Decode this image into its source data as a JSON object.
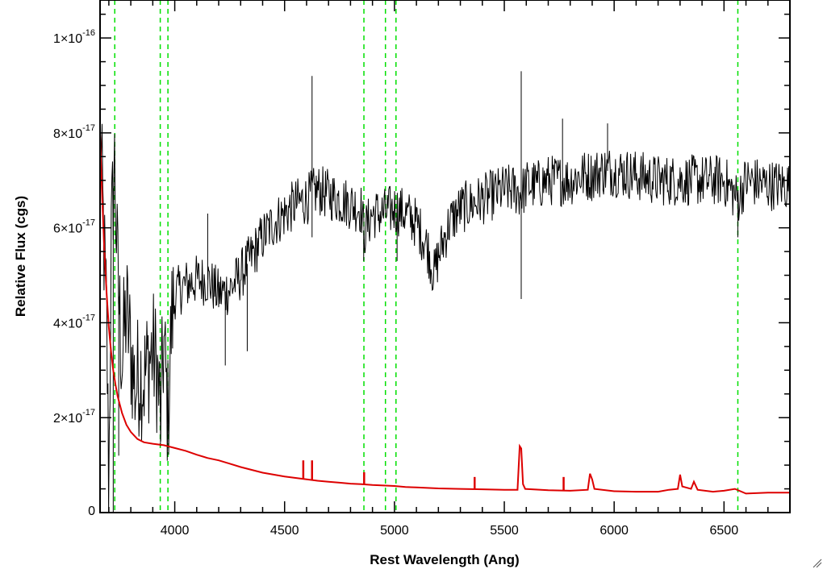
{
  "chart_data": {
    "type": "line",
    "title": "",
    "xlabel": "Rest Wavelength (Ang)",
    "ylabel": "Relative Flux (cgs)",
    "xlim": [
      3660,
      6800
    ],
    "ylim": [
      0,
      1.08e-16
    ],
    "x_ticks": [
      {
        "value": 4000,
        "label": "4000"
      },
      {
        "value": 4500,
        "label": "4500"
      },
      {
        "value": 5000,
        "label": "5000"
      },
      {
        "value": 5500,
        "label": "5500"
      },
      {
        "value": 6000,
        "label": "6000"
      },
      {
        "value": 6500,
        "label": "6500"
      }
    ],
    "y_ticks": [
      {
        "value": 0,
        "mantissa": "0",
        "exponent": ""
      },
      {
        "value": 2e-17,
        "mantissa": "2×10",
        "exponent": "-17"
      },
      {
        "value": 4e-17,
        "mantissa": "4×10",
        "exponent": "-17"
      },
      {
        "value": 6e-17,
        "mantissa": "6×10",
        "exponent": "-17"
      },
      {
        "value": 8e-17,
        "mantissa": "8×10",
        "exponent": "-17"
      },
      {
        "value": 1e-16,
        "mantissa": "1×10",
        "exponent": "-16"
      }
    ],
    "reference_lines": {
      "color": "#00e000",
      "style": "dashed",
      "x": [
        3727,
        3934,
        3969,
        4861,
        4959,
        5007,
        6563
      ]
    },
    "series": [
      {
        "color": "#000000",
        "noisy": true,
        "points": [
          [
            3660,
            8e-17
          ],
          [
            3675,
            6e-17
          ],
          [
            3690,
            4e-17
          ],
          [
            3700,
            5e-18
          ],
          [
            3710,
            5.5e-17
          ],
          [
            3725,
            7.5e-17
          ],
          [
            3740,
            5e-17
          ],
          [
            3760,
            3.2e-17
          ],
          [
            3780,
            4.3e-17
          ],
          [
            3800,
            3.4e-17
          ],
          [
            3820,
            2.6e-17
          ],
          [
            3840,
            3e-17
          ],
          [
            3860,
            2.8e-17
          ],
          [
            3880,
            3.2e-17
          ],
          [
            3900,
            3.4e-17
          ],
          [
            3920,
            3e-17
          ],
          [
            3935,
            2e-17
          ],
          [
            3950,
            3.6e-17
          ],
          [
            3969,
            2e-17
          ],
          [
            3985,
            4e-17
          ],
          [
            4000,
            4.6e-17
          ],
          [
            4050,
            4.8e-17
          ],
          [
            4100,
            4.9e-17
          ],
          [
            4150,
            4.9e-17
          ],
          [
            4200,
            4.6e-17
          ],
          [
            4250,
            4.7e-17
          ],
          [
            4300,
            5e-17
          ],
          [
            4350,
            5.4e-17
          ],
          [
            4400,
            5.8e-17
          ],
          [
            4450,
            6.1e-17
          ],
          [
            4500,
            6.3e-17
          ],
          [
            4550,
            6.5e-17
          ],
          [
            4600,
            6.6e-17
          ],
          [
            4650,
            6.8e-17
          ],
          [
            4700,
            6.7e-17
          ],
          [
            4750,
            6.6e-17
          ],
          [
            4800,
            6.5e-17
          ],
          [
            4850,
            6.4e-17
          ],
          [
            4861,
            5.9e-17
          ],
          [
            4900,
            6.3e-17
          ],
          [
            4950,
            6.3e-17
          ],
          [
            5000,
            6.4e-17
          ],
          [
            5050,
            6.3e-17
          ],
          [
            5100,
            6.1e-17
          ],
          [
            5150,
            5.6e-17
          ],
          [
            5180,
            5e-17
          ],
          [
            5200,
            5.4e-17
          ],
          [
            5250,
            6.1e-17
          ],
          [
            5300,
            6.4e-17
          ],
          [
            5350,
            6.5e-17
          ],
          [
            5400,
            6.6e-17
          ],
          [
            5450,
            6.7e-17
          ],
          [
            5500,
            6.8e-17
          ],
          [
            5550,
            6.8e-17
          ],
          [
            5577,
            6.7e-17
          ],
          [
            5600,
            6.9e-17
          ],
          [
            5650,
            6.9e-17
          ],
          [
            5700,
            7e-17
          ],
          [
            5750,
            7e-17
          ],
          [
            5800,
            7e-17
          ],
          [
            5850,
            7.1e-17
          ],
          [
            5900,
            7.1e-17
          ],
          [
            5950,
            7.2e-17
          ],
          [
            6000,
            7.2e-17
          ],
          [
            6100,
            7.1e-17
          ],
          [
            6200,
            7e-17
          ],
          [
            6300,
            7e-17
          ],
          [
            6400,
            7e-17
          ],
          [
            6500,
            7e-17
          ],
          [
            6563,
            6.6e-17
          ],
          [
            6600,
            7e-17
          ],
          [
            6700,
            6.9e-17
          ],
          [
            6800,
            6.9e-17
          ]
        ],
        "spikes": [
          [
            4625,
            9.2e-17
          ],
          [
            4625,
            5.8e-17
          ],
          [
            5577,
            9.3e-17
          ],
          [
            5577,
            4.5e-17
          ],
          [
            5765,
            8.3e-17
          ],
          [
            5970,
            8.2e-17
          ],
          [
            6563,
            5.8e-17
          ],
          [
            4860,
            5.3e-17
          ],
          [
            5012,
            5.3e-17
          ],
          [
            4230,
            3.1e-17
          ],
          [
            4330,
            3.4e-17
          ],
          [
            3935,
            1.4e-17
          ],
          [
            3720,
            0.0
          ],
          [
            3745,
            1.2e-17
          ],
          [
            4150,
            6.3e-17
          ]
        ]
      },
      {
        "color": "#dd0000",
        "noisy": false,
        "points": [
          [
            3660,
            8e-17
          ],
          [
            3670,
            6.6e-17
          ],
          [
            3680,
            5.5e-17
          ],
          [
            3690,
            4.6e-17
          ],
          [
            3700,
            3.9e-17
          ],
          [
            3710,
            3.4e-17
          ],
          [
            3720,
            3e-17
          ],
          [
            3730,
            2.7e-17
          ],
          [
            3740,
            2.45e-17
          ],
          [
            3760,
            2.1e-17
          ],
          [
            3780,
            1.85e-17
          ],
          [
            3800,
            1.7e-17
          ],
          [
            3830,
            1.55e-17
          ],
          [
            3860,
            1.48e-17
          ],
          [
            3900,
            1.45e-17
          ],
          [
            3950,
            1.42e-17
          ],
          [
            4000,
            1.36e-17
          ],
          [
            4050,
            1.3e-17
          ],
          [
            4100,
            1.22e-17
          ],
          [
            4150,
            1.15e-17
          ],
          [
            4200,
            1.1e-17
          ],
          [
            4250,
            1.03e-17
          ],
          [
            4300,
            9.6e-18
          ],
          [
            4350,
            9e-18
          ],
          [
            4400,
            8.4e-18
          ],
          [
            4450,
            8e-18
          ],
          [
            4500,
            7.6e-18
          ],
          [
            4550,
            7.3e-18
          ],
          [
            4600,
            7e-18
          ],
          [
            4650,
            6.7e-18
          ],
          [
            4700,
            6.5e-18
          ],
          [
            4750,
            6.3e-18
          ],
          [
            4800,
            6.1e-18
          ],
          [
            4850,
            6e-18
          ],
          [
            4900,
            5.8e-18
          ],
          [
            4950,
            5.7e-18
          ],
          [
            5000,
            5.6e-18
          ],
          [
            5050,
            5.4e-18
          ],
          [
            5100,
            5.3e-18
          ],
          [
            5150,
            5.2e-18
          ],
          [
            5200,
            5.1e-18
          ],
          [
            5300,
            5e-18
          ],
          [
            5400,
            4.9e-18
          ],
          [
            5500,
            4.8e-18
          ],
          [
            5560,
            4.8e-18
          ],
          [
            5570,
            1.4e-17
          ],
          [
            5577,
            1.35e-17
          ],
          [
            5585,
            6e-18
          ],
          [
            5595,
            5e-18
          ],
          [
            5700,
            4.7e-18
          ],
          [
            5800,
            4.6e-18
          ],
          [
            5880,
            4.8e-18
          ],
          [
            5890,
            8.2e-18
          ],
          [
            5900,
            7e-18
          ],
          [
            5910,
            5e-18
          ],
          [
            6000,
            4.5e-18
          ],
          [
            6100,
            4.4e-18
          ],
          [
            6200,
            4.4e-18
          ],
          [
            6250,
            4.8e-18
          ],
          [
            6290,
            5e-18
          ],
          [
            6300,
            8e-18
          ],
          [
            6310,
            5.5e-18
          ],
          [
            6350,
            5e-18
          ],
          [
            6363,
            6.5e-18
          ],
          [
            6380,
            4.8e-18
          ],
          [
            6450,
            4.4e-18
          ],
          [
            6500,
            4.6e-18
          ],
          [
            6550,
            5e-18
          ],
          [
            6600,
            4e-18
          ],
          [
            6700,
            4.2e-18
          ],
          [
            6800,
            4.2e-18
          ]
        ],
        "spikes": [
          [
            4585,
            1.1e-17
          ],
          [
            4625,
            1.1e-17
          ],
          [
            4862,
            8.5e-18
          ],
          [
            5365,
            7.5e-18
          ],
          [
            5770,
            7.5e-18
          ]
        ]
      }
    ]
  }
}
